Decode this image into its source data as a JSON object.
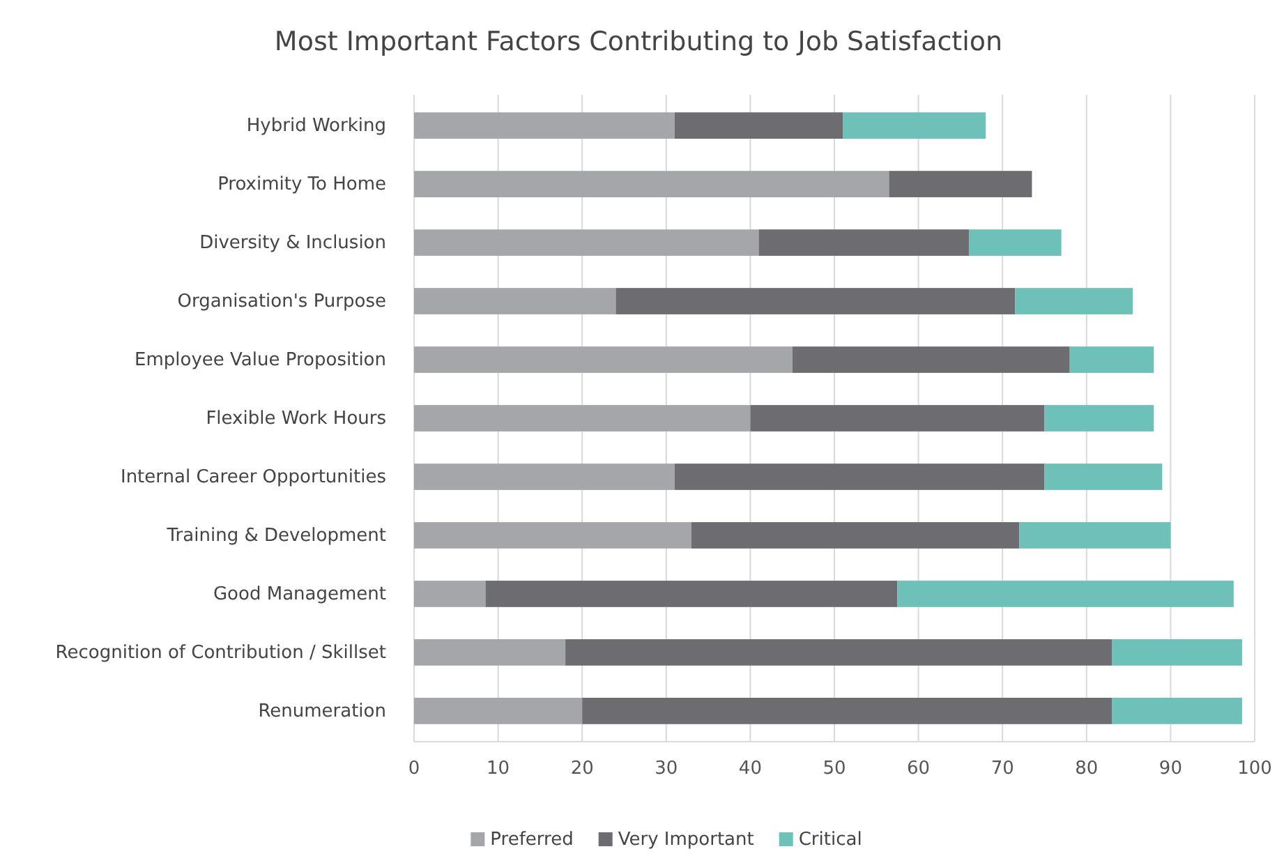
{
  "chart_data": {
    "type": "bar",
    "orientation": "horizontal",
    "stacked": true,
    "title": "Most Important Factors Contributing to Job Satisfaction",
    "categories": [
      "Hybrid Working",
      "Proximity To Home",
      "Diversity & Inclusion",
      "Organisation's Purpose",
      "Employee Value Proposition",
      "Flexible Work Hours",
      "Internal Career Opportunities",
      "Training & Development",
      "Good Management",
      "Recognition of Contribution / Skillset",
      "Renumeration"
    ],
    "series": [
      {
        "name": "Preferred",
        "color": "#a5a6aa",
        "values": [
          31,
          56.5,
          41,
          24,
          45,
          40,
          31,
          33,
          8.5,
          18,
          20
        ]
      },
      {
        "name": "Very Important",
        "color": "#6d6c71",
        "values": [
          20,
          17,
          25,
          47.5,
          33,
          35,
          44,
          39,
          49,
          65,
          63
        ]
      },
      {
        "name": "Critical",
        "color": "#6dc1b8",
        "values": [
          17,
          null,
          11,
          14,
          10,
          13,
          14,
          18,
          40,
          15.5,
          15.5
        ]
      }
    ],
    "xlim": [
      0,
      100
    ],
    "xticks": [
      0,
      10,
      20,
      30,
      40,
      50,
      60,
      70,
      80,
      90,
      100
    ],
    "grid": "x",
    "legend": "bottom"
  }
}
